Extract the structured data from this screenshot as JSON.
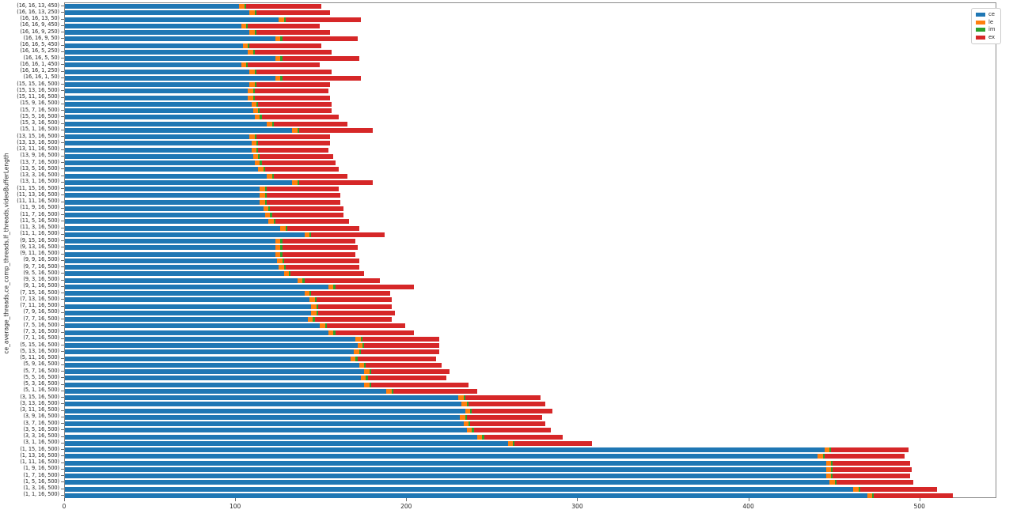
{
  "figure": {
    "background": "#ffffff",
    "spine_color": "#8a8a8a"
  },
  "chart_data": {
    "type": "bar",
    "orientation": "horizontal-stacked",
    "title": "",
    "xlabel": "",
    "ylabel": "ce_average_threads,ce_comp_threads,lf_threads,videoBufferLength",
    "xlim": [
      0,
      545
    ],
    "xticks": [
      0,
      100,
      200,
      300,
      400,
      500
    ],
    "grid": false,
    "legend_position": "upper-right-outside",
    "categories": [
      "(16, 16, 13, 450)",
      "(16, 16, 13, 250)",
      "(16, 16, 13, 50)",
      "(16, 16, 9, 450)",
      "(16, 16, 9, 250)",
      "(16, 16, 9, 50)",
      "(16, 16, 5, 450)",
      "(16, 16, 5, 250)",
      "(16, 16, 5, 50)",
      "(16, 16, 1, 450)",
      "(16, 16, 1, 250)",
      "(16, 16, 1, 50)",
      "(15, 15, 16, 500)",
      "(15, 13, 16, 500)",
      "(15, 11, 16, 500)",
      "(15, 9, 16, 500)",
      "(15, 7, 16, 500)",
      "(15, 5, 16, 500)",
      "(15, 3, 16, 500)",
      "(15, 1, 16, 500)",
      "(13, 15, 16, 500)",
      "(13, 13, 16, 500)",
      "(13, 11, 16, 500)",
      "(13, 9, 16, 500)",
      "(13, 7, 16, 500)",
      "(13, 5, 16, 500)",
      "(13, 3, 16, 500)",
      "(13, 1, 16, 500)",
      "(11, 15, 16, 500)",
      "(11, 13, 16, 500)",
      "(11, 11, 16, 500)",
      "(11, 9, 16, 500)",
      "(11, 7, 16, 500)",
      "(11, 5, 16, 500)",
      "(11, 3, 16, 500)",
      "(11, 1, 16, 500)",
      "(9, 15, 16, 500)",
      "(9, 13, 16, 500)",
      "(9, 11, 16, 500)",
      "(9, 9, 16, 500)",
      "(9, 7, 16, 500)",
      "(9, 5, 16, 500)",
      "(9, 3, 16, 500)",
      "(9, 1, 16, 500)",
      "(7, 15, 16, 500)",
      "(7, 13, 16, 500)",
      "(7, 11, 16, 500)",
      "(7, 9, 16, 500)",
      "(7, 7, 16, 500)",
      "(7, 5, 16, 500)",
      "(7, 3, 16, 500)",
      "(7, 1, 16, 500)",
      "(5, 15, 16, 500)",
      "(5, 13, 16, 500)",
      "(5, 11, 16, 500)",
      "(5, 9, 16, 500)",
      "(5, 7, 16, 500)",
      "(5, 5, 16, 500)",
      "(5, 3, 16, 500)",
      "(5, 1, 16, 500)",
      "(3, 15, 16, 500)",
      "(3, 13, 16, 500)",
      "(3, 11, 16, 500)",
      "(3, 9, 16, 500)",
      "(3, 7, 16, 500)",
      "(3, 5, 16, 500)",
      "(3, 3, 16, 500)",
      "(3, 1, 16, 500)",
      "(1, 15, 16, 500)",
      "(1, 13, 16, 500)",
      "(1, 11, 16, 500)",
      "(1, 9, 16, 500)",
      "(1, 7, 16, 500)",
      "(1, 5, 16, 500)",
      "(1, 3, 16, 500)",
      "(1, 1, 16, 500)"
    ],
    "series": [
      {
        "name": "ce",
        "color": "#1f77b4",
        "values": [
          102,
          108,
          125,
          103,
          108,
          123,
          104,
          107,
          123,
          103,
          108,
          123,
          108,
          107,
          107,
          109,
          110,
          111,
          118,
          133,
          108,
          109,
          109,
          110,
          111,
          113,
          118,
          133,
          114,
          114,
          114,
          116,
          117,
          119,
          126,
          140,
          123,
          123,
          123,
          124,
          125,
          128,
          136,
          154,
          140,
          143,
          144,
          144,
          142,
          149,
          154,
          170,
          171,
          169,
          167,
          172,
          175,
          173,
          175,
          188,
          230,
          232,
          234,
          231,
          233,
          235,
          241,
          259,
          444,
          440,
          445,
          445,
          445,
          447,
          461,
          469
        ]
      },
      {
        "name": "le",
        "color": "#ff7f0e",
        "values": [
          3,
          3,
          3,
          3,
          3,
          3,
          3,
          3,
          3,
          3,
          3,
          3,
          3,
          3,
          3,
          3,
          3,
          3,
          3,
          3,
          3,
          3,
          3,
          3,
          3,
          3,
          3,
          3,
          3,
          3,
          3,
          3,
          3,
          3,
          3,
          3,
          3,
          3,
          3,
          3,
          3,
          3,
          3,
          3,
          3,
          3,
          3,
          3,
          3,
          3,
          3,
          3,
          3,
          3,
          3,
          3,
          3,
          3,
          3,
          3,
          3,
          3,
          3,
          3,
          3,
          3,
          3,
          3,
          3,
          3,
          3,
          3,
          3,
          3,
          3,
          3
        ]
      },
      {
        "name": "im",
        "color": "#2ca02c",
        "values": [
          1,
          1,
          1,
          1,
          1,
          1,
          1,
          1,
          1,
          1,
          1,
          1,
          1,
          1,
          1,
          1,
          1,
          1,
          1,
          1,
          1,
          1,
          1,
          1,
          1,
          1,
          1,
          1,
          1,
          1,
          1,
          1,
          1,
          1,
          1,
          1,
          1,
          1,
          1,
          1,
          1,
          1,
          1,
          1,
          1,
          1,
          1,
          1,
          1,
          1,
          1,
          1,
          1,
          1,
          1,
          1,
          1,
          1,
          1,
          1,
          1,
          1,
          1,
          1,
          1,
          1,
          1,
          1,
          1,
          1,
          1,
          1,
          1,
          1,
          1,
          1
        ]
      },
      {
        "name": "ex",
        "color": "#d62728",
        "values": [
          44,
          43,
          44,
          42,
          43,
          44,
          42,
          45,
          45,
          42,
          44,
          46,
          43,
          43,
          44,
          43,
          42,
          45,
          43,
          43,
          43,
          42,
          41,
          43,
          43,
          43,
          43,
          43,
          42,
          43,
          43,
          43,
          42,
          43,
          42,
          43,
          43,
          44,
          43,
          44,
          43,
          43,
          44,
          46,
          46,
          44,
          43,
          45,
          45,
          46,
          46,
          45,
          44,
          46,
          46,
          44,
          46,
          46,
          57,
          49,
          44,
          45,
          47,
          44,
          44,
          45,
          46,
          45,
          45,
          47,
          45,
          46,
          45,
          45,
          45,
          46
        ]
      }
    ]
  }
}
